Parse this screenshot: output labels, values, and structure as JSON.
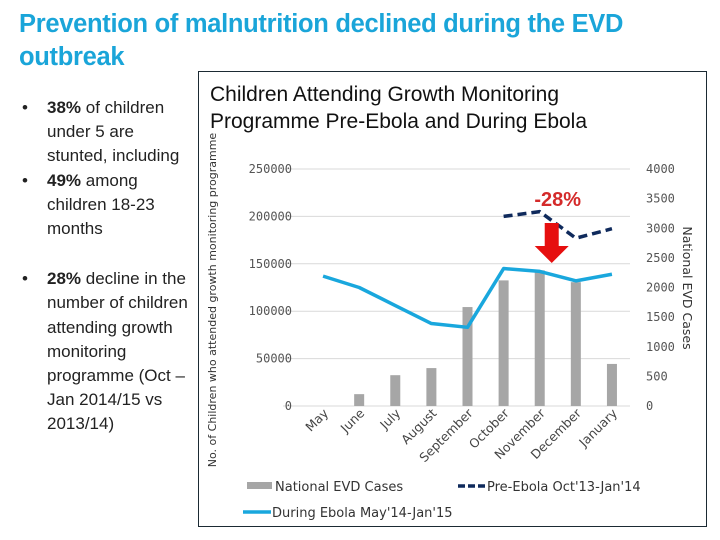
{
  "slide": {
    "title": "Prevention of malnutrition declined during the EVD outbreak",
    "bullets": [
      {
        "bold": "38%",
        "text": " of children under 5 are stunted, including"
      },
      {
        "bold": "49%",
        "text": " among children 18-23 months"
      },
      {
        "bold": "28%",
        "text": " decline in the number of children attending growth monitoring programme (Oct – Jan 2014/15 vs 2013/14)"
      }
    ],
    "bullet_glyph": "•"
  },
  "chart_data": {
    "type": "bar+line",
    "title": "Children Attending Growth Monitoring Programme Pre-Ebola and During Ebola",
    "ylabel": "No. of Children who attended growth monitoring programme",
    "y2label": "National EVD Cases",
    "categories": [
      "May",
      "June",
      "July",
      "August",
      "September",
      "October",
      "November",
      "December",
      "January"
    ],
    "ylim": [
      0,
      250000
    ],
    "y_ticks": [
      0,
      50000,
      100000,
      150000,
      200000,
      250000
    ],
    "y2lim": [
      0,
      4000
    ],
    "y2_ticks": [
      0,
      500,
      1000,
      1500,
      2000,
      2500,
      3000,
      3500,
      4000
    ],
    "grid": true,
    "legend_position": "bottom",
    "series": [
      {
        "name": "National EVD Cases",
        "kind": "bar",
        "axis": "right",
        "color": "#a6a6a6",
        "values": [
          0,
          200,
          520,
          640,
          1670,
          2120,
          2290,
          2090,
          710
        ]
      },
      {
        "name": "Pre-Ebola Oct'13-Jan'14",
        "kind": "line",
        "style": "dashed",
        "axis": "left",
        "color": "#0f2a5c",
        "values": [
          null,
          null,
          null,
          null,
          null,
          200000,
          205000,
          177000,
          187000
        ]
      },
      {
        "name": "During Ebola May'14-Jan'15",
        "kind": "line",
        "style": "solid",
        "axis": "left",
        "color": "#19a7dd",
        "values": [
          137000,
          125000,
          106000,
          87000,
          83000,
          145000,
          142000,
          132000,
          139000
        ]
      }
    ],
    "legend_order": [
      "National EVD Cases",
      "Pre-Ebola Oct'13-Jan'14",
      "During Ebola May'14-Jan'15"
    ],
    "annotation": {
      "text": "-28%",
      "category": "November",
      "arrow": "down",
      "color": "#e60f0f",
      "text_color": "#d42a2a"
    }
  }
}
